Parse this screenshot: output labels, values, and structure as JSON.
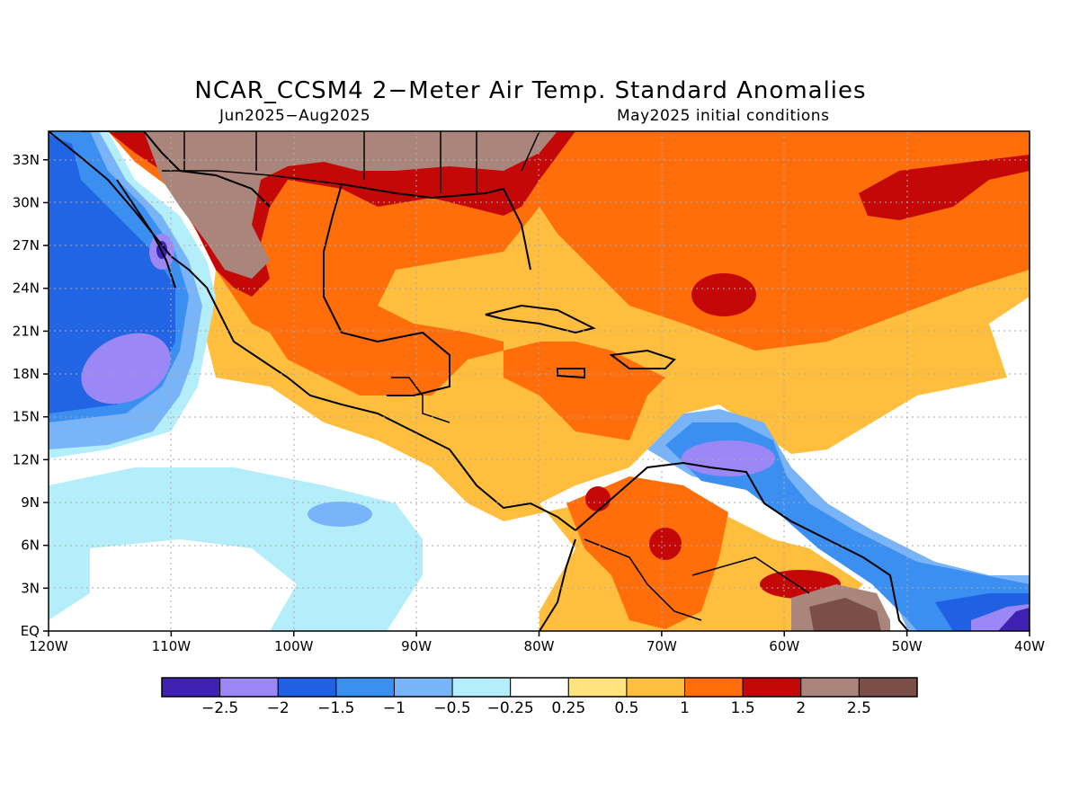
{
  "header": {
    "title": "NCAR_CCSM4 2−Meter Air Temp. Standard Anomalies",
    "period": "Jun2025−Aug2025",
    "initial_conditions": "May2025 initial conditions"
  },
  "map": {
    "lon_range": [
      -120,
      -40
    ],
    "lat_range": [
      0,
      35
    ],
    "lon_ticks": [
      {
        "v": -120,
        "label": "120W"
      },
      {
        "v": -110,
        "label": "110W"
      },
      {
        "v": -100,
        "label": "100W"
      },
      {
        "v": -90,
        "label": "90W"
      },
      {
        "v": -80,
        "label": "80W"
      },
      {
        "v": -70,
        "label": "70W"
      },
      {
        "v": -60,
        "label": "60W"
      },
      {
        "v": -50,
        "label": "50W"
      },
      {
        "v": -40,
        "label": "40W"
      }
    ],
    "lat_ticks": [
      {
        "v": 0,
        "label": "EQ"
      },
      {
        "v": 3,
        "label": "3N"
      },
      {
        "v": 6,
        "label": "6N"
      },
      {
        "v": 9,
        "label": "9N"
      },
      {
        "v": 12,
        "label": "12N"
      },
      {
        "v": 15,
        "label": "15N"
      },
      {
        "v": 18,
        "label": "18N"
      },
      {
        "v": 21,
        "label": "21N"
      },
      {
        "v": 24,
        "label": "24N"
      },
      {
        "v": 27,
        "label": "27N"
      },
      {
        "v": 30,
        "label": "30N"
      },
      {
        "v": 33,
        "label": "33N"
      }
    ],
    "grid": true
  },
  "colorbar": {
    "colors": [
      "#3f22b4",
      "#9b87f5",
      "#2060e2",
      "#3b8ff0",
      "#78b4f7",
      "#b4eefa",
      "#ffffff",
      "#ffe47e",
      "#ffbe3e",
      "#ff6e0a",
      "#c40808",
      "#aa857b",
      "#7a4f47"
    ],
    "labels": [
      "−2.5",
      "−2",
      "−1.5",
      "−1",
      "−0.5",
      "−0.25",
      "0.25",
      "0.5",
      "1",
      "1.5",
      "2",
      "2.5"
    ]
  }
}
